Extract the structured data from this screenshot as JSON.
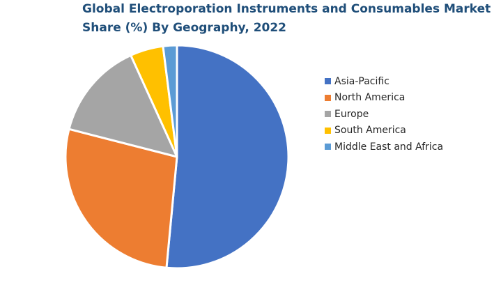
{
  "chart_data": {
    "type": "pie",
    "title": [
      "Global Electroporation Instruments and Consumables Market",
      "Share (%) By Geography, 2022"
    ],
    "unit": "%",
    "legend_position": "right",
    "slices": [
      {
        "label": "Asia-Pacific",
        "value": 51.5,
        "color": "#4472c4"
      },
      {
        "label": "North America",
        "value": 27.5,
        "color": "#ed7d31"
      },
      {
        "label": "Europe",
        "value": 14.2,
        "color": "#a5a5a5"
      },
      {
        "label": "South America",
        "value": 4.8,
        "color": "#ffc000"
      },
      {
        "label": "Middle East and Africa",
        "value": 2.0,
        "color": "#5b9bd5"
      }
    ]
  }
}
